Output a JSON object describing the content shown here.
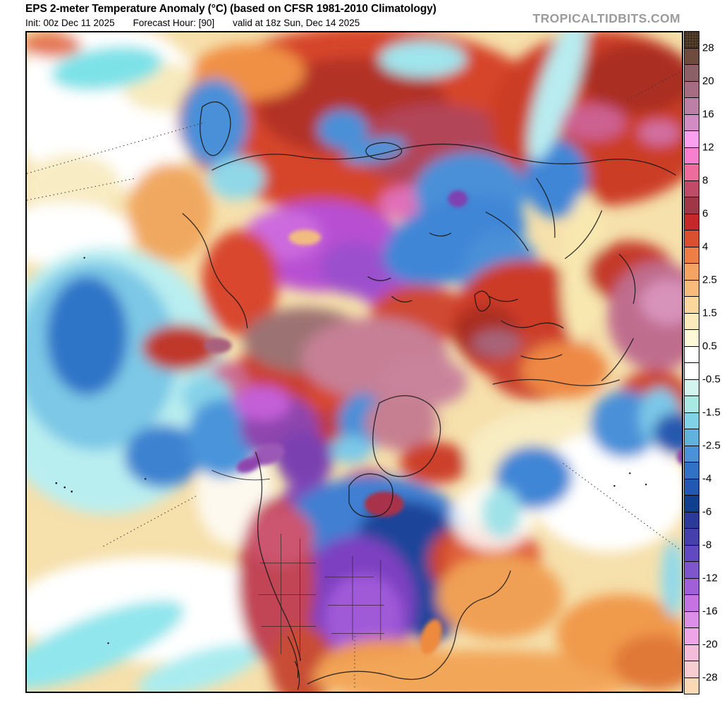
{
  "header": {
    "title": "EPS 2-meter Temperature Anomaly (°C) (based on CFSR 1981-2010 Climatology)",
    "init": "Init: 00z Dec 11 2025",
    "forecast_hour": "Forecast Hour: [90]",
    "valid": "valid at 18z Sun, Dec 14 2025",
    "watermark": "TROPICALTIDBITS.COM"
  },
  "map": {
    "label": "Northern Hemisphere 2-meter temperature anomaly filled-contour map"
  },
  "colorbar": {
    "unit": "°C",
    "segments": [
      {
        "from": 30,
        "to": 28,
        "color": "#54402e",
        "textured": true
      },
      {
        "from": 28,
        "to": 24,
        "color": "#6f4b3e"
      },
      {
        "from": 24,
        "to": 20,
        "color": "#8d5f66"
      },
      {
        "from": 20,
        "to": 18,
        "color": "#a66d82"
      },
      {
        "from": 18,
        "to": 16,
        "color": "#bc7fa6"
      },
      {
        "from": 16,
        "to": 14,
        "color": "#d18cc1"
      },
      {
        "from": 14,
        "to": 12,
        "color": "#fba0f0"
      },
      {
        "from": 12,
        "to": 10,
        "color": "#f87fd0"
      },
      {
        "from": 10,
        "to": 8,
        "color": "#ee6b9e"
      },
      {
        "from": 8,
        "to": 7,
        "color": "#c04a67"
      },
      {
        "from": 7,
        "to": 6,
        "color": "#a03648"
      },
      {
        "from": 6,
        "to": 5,
        "color": "#c52828"
      },
      {
        "from": 5,
        "to": 4,
        "color": "#dc4f2e"
      },
      {
        "from": 4,
        "to": 3,
        "color": "#ee7e44"
      },
      {
        "from": 3,
        "to": 2.5,
        "color": "#f5a360"
      },
      {
        "from": 2.5,
        "to": 2,
        "color": "#f8bb79"
      },
      {
        "from": 2,
        "to": 1.5,
        "color": "#fbd79c"
      },
      {
        "from": 1.5,
        "to": 1,
        "color": "#fceabd"
      },
      {
        "from": 1,
        "to": 0.5,
        "color": "#fdf8d8"
      },
      {
        "from": 0.5,
        "to": 0,
        "color": "#ffffff"
      },
      {
        "from": 0,
        "to": -0.5,
        "color": "#ffffff"
      },
      {
        "from": -0.5,
        "to": -1,
        "color": "#d4f5ef"
      },
      {
        "from": -1,
        "to": -1.5,
        "color": "#a8e9e4"
      },
      {
        "from": -1.5,
        "to": -2,
        "color": "#7fd2e8"
      },
      {
        "from": -2,
        "to": -2.5,
        "color": "#5fb2de"
      },
      {
        "from": -2.5,
        "to": -3,
        "color": "#4992da"
      },
      {
        "from": -3,
        "to": -4,
        "color": "#2f72c8"
      },
      {
        "from": -4,
        "to": -5,
        "color": "#2058b4"
      },
      {
        "from": -5,
        "to": -6,
        "color": "#0f3f8e"
      },
      {
        "from": -6,
        "to": -7,
        "color": "#2c3a9c"
      },
      {
        "from": -7,
        "to": -8,
        "color": "#463fae"
      },
      {
        "from": -8,
        "to": -10,
        "color": "#6149c1"
      },
      {
        "from": -10,
        "to": -12,
        "color": "#7e55cc"
      },
      {
        "from": -12,
        "to": -14,
        "color": "#a160da"
      },
      {
        "from": -14,
        "to": -16,
        "color": "#c671e4"
      },
      {
        "from": -16,
        "to": -18,
        "color": "#dc8fe9"
      },
      {
        "from": -18,
        "to": -20,
        "color": "#eda5e6"
      },
      {
        "from": -20,
        "to": -24,
        "color": "#f4bcd9"
      },
      {
        "from": -24,
        "to": -28,
        "color": "#f8ccd1"
      },
      {
        "from": -28,
        "to": -30,
        "color": "#fcd8b5"
      }
    ],
    "ticks": [
      {
        "label": "28",
        "boundary_index": 1
      },
      {
        "label": "20",
        "boundary_index": 3
      },
      {
        "label": "16",
        "boundary_index": 5
      },
      {
        "label": "12",
        "boundary_index": 7
      },
      {
        "label": "8",
        "boundary_index": 9
      },
      {
        "label": "6",
        "boundary_index": 11
      },
      {
        "label": "4",
        "boundary_index": 13
      },
      {
        "label": "2.5",
        "boundary_index": 15
      },
      {
        "label": "1.5",
        "boundary_index": 17
      },
      {
        "label": "0.5",
        "boundary_index": 19
      },
      {
        "label": "-0.5",
        "boundary_index": 21
      },
      {
        "label": "-1.5",
        "boundary_index": 23
      },
      {
        "label": "-2.5",
        "boundary_index": 25
      },
      {
        "label": "-4",
        "boundary_index": 27
      },
      {
        "label": "-6",
        "boundary_index": 29
      },
      {
        "label": "-8",
        "boundary_index": 31
      },
      {
        "label": "-12",
        "boundary_index": 33
      },
      {
        "label": "-16",
        "boundary_index": 35
      },
      {
        "label": "-20",
        "boundary_index": 37
      },
      {
        "label": "-28",
        "boundary_index": 39
      }
    ]
  }
}
